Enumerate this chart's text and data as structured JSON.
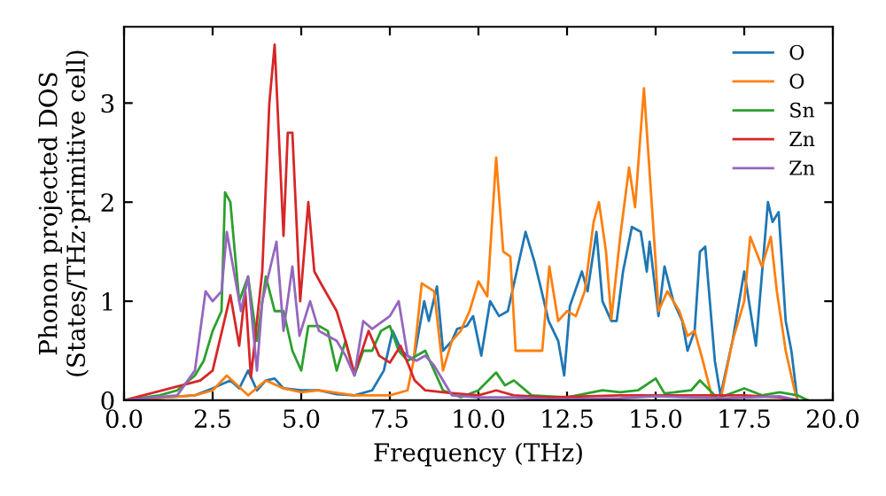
{
  "chart_data": {
    "type": "line",
    "xlabel": "Frequency (THz)",
    "ylabel": "Phonon projected DOS\n(States/THz·primitive cell)",
    "xlim": [
      0,
      20
    ],
    "ylim": [
      0,
      3.77
    ],
    "xticks": [
      {
        "value": 0,
        "label": "0.0"
      },
      {
        "value": 2.5,
        "label": "2.5"
      },
      {
        "value": 5,
        "label": "5.0"
      },
      {
        "value": 7.5,
        "label": "7.5"
      },
      {
        "value": 10,
        "label": "10.0"
      },
      {
        "value": 12.5,
        "label": "12.5"
      },
      {
        "value": 15,
        "label": "15.0"
      },
      {
        "value": 17.5,
        "label": "17.5"
      },
      {
        "value": 20,
        "label": "20.0"
      }
    ],
    "yticks": [
      0,
      1,
      2,
      3
    ],
    "grid": false,
    "legend": "top right",
    "marker": "none",
    "line_style": "solid",
    "series": [
      {
        "name": "O",
        "color": "#1f77b4",
        "x": [
          0,
          2,
          2.5,
          3.0,
          3.25,
          3.5,
          3.75,
          4,
          4.25,
          4.5,
          5.0,
          5.5,
          6.0,
          6.5,
          7.0,
          7.33,
          7.58,
          7.83,
          8.17,
          8.47,
          8.6,
          8.83,
          9.0,
          9.25,
          9.4,
          9.67,
          9.85,
          10.08,
          10.33,
          10.58,
          10.83,
          11.08,
          11.33,
          11.58,
          11.75,
          11.98,
          12.25,
          12.42,
          12.58,
          12.92,
          13.08,
          13.33,
          13.5,
          13.75,
          13.9,
          14.08,
          14.33,
          14.58,
          14.75,
          14.83,
          15.08,
          15.25,
          15.5,
          15.75,
          15.9,
          16.1,
          16.25,
          16.4,
          16.67,
          16.83,
          17.17,
          17.5,
          17.83,
          18.17,
          18.3,
          18.47,
          18.67,
          18.83,
          19.0
        ],
        "values": [
          0,
          0.05,
          0.12,
          0.2,
          0.12,
          0.3,
          0.1,
          0.2,
          0.22,
          0.12,
          0.1,
          0.1,
          0.06,
          0.05,
          0.1,
          0.3,
          0.7,
          0.5,
          0.4,
          1.0,
          0.8,
          1.15,
          0.5,
          0.6,
          0.72,
          0.75,
          0.85,
          0.45,
          1.0,
          0.85,
          0.9,
          1.3,
          1.7,
          1.4,
          1.15,
          0.8,
          0.6,
          0.25,
          0.95,
          1.3,
          1.1,
          1.7,
          1.0,
          0.8,
          0.8,
          1.3,
          1.75,
          1.7,
          1.3,
          1.6,
          0.85,
          1.35,
          1.0,
          0.8,
          0.5,
          0.7,
          1.5,
          1.55,
          0.4,
          0.05,
          0.6,
          1.3,
          0.55,
          2.0,
          1.8,
          1.9,
          0.8,
          0.5,
          0
        ]
      },
      {
        "name": "O",
        "color": "#ff7f0e",
        "x": [
          0,
          2,
          2.5,
          2.9,
          3.5,
          4,
          4.5,
          5.0,
          5.5,
          6.5,
          7.5,
          8.0,
          8.17,
          8.4,
          8.75,
          9.0,
          9.25,
          9.5,
          9.75,
          10,
          10.25,
          10.5,
          10.7,
          10.9,
          11.05,
          11.5,
          11.8,
          12.0,
          12.25,
          12.5,
          12.75,
          13.0,
          13.25,
          13.4,
          13.6,
          13.75,
          14.0,
          14.25,
          14.42,
          14.67,
          14.83,
          15.0,
          15.08,
          15.33,
          15.67,
          15.9,
          16.1,
          16.33,
          16.58,
          16.83,
          17.17,
          17.5,
          17.67,
          18.0,
          18.25,
          18.42,
          18.67,
          18.92,
          19.0
        ],
        "values": [
          0,
          0.05,
          0.1,
          0.25,
          0.05,
          0.2,
          0.12,
          0.08,
          0.1,
          0.05,
          0.05,
          0.1,
          0.4,
          1.18,
          1.1,
          0.3,
          0.6,
          0.7,
          0.9,
          1.2,
          1.05,
          2.45,
          1.5,
          1.45,
          0.5,
          0.5,
          0.5,
          1.35,
          0.8,
          0.9,
          0.85,
          1.1,
          1.8,
          2.0,
          1.5,
          0.82,
          1.65,
          2.35,
          1.95,
          3.15,
          2.3,
          1.4,
          0.9,
          1.1,
          0.9,
          0.65,
          0.7,
          0.4,
          0.05,
          0.0,
          0.6,
          1.0,
          1.65,
          1.35,
          1.65,
          1.1,
          0.5,
          0.1,
          0
        ]
      },
      {
        "name": "Sn",
        "color": "#2ca02c",
        "x": [
          0,
          1.0,
          1.5,
          2.0,
          2.25,
          2.5,
          2.75,
          2.85,
          3.0,
          3.25,
          3.5,
          3.75,
          4.0,
          4.25,
          4.5,
          4.75,
          5.0,
          5.2,
          5.5,
          5.75,
          6.0,
          6.25,
          6.5,
          6.75,
          7.0,
          7.25,
          7.5,
          7.75,
          8.0,
          8.5,
          8.75,
          9,
          9.5,
          10,
          10.5,
          10.75,
          11,
          11.5,
          12.5,
          13.5,
          14,
          14.5,
          15,
          15.25,
          16,
          16.25,
          16.75,
          17.5,
          18,
          18.5,
          19.0,
          19.3
        ],
        "values": [
          0,
          0.05,
          0.1,
          0.25,
          0.4,
          0.7,
          0.9,
          2.1,
          2.0,
          1.0,
          1.25,
          0.6,
          1.25,
          0.9,
          0.9,
          0.5,
          0.3,
          0.75,
          0.75,
          0.7,
          0.3,
          0.6,
          0.25,
          0.5,
          0.5,
          0.7,
          0.75,
          0.5,
          0.4,
          0.5,
          0.3,
          0.1,
          0.03,
          0.1,
          0.28,
          0.15,
          0.2,
          0.05,
          0.03,
          0.1,
          0.08,
          0.1,
          0.22,
          0.07,
          0.1,
          0.2,
          0.02,
          0.12,
          0.05,
          0.08,
          0.05,
          0
        ]
      },
      {
        "name": "Zn",
        "color": "#d62728",
        "x": [
          0,
          2.15,
          2.5,
          3.0,
          3.25,
          3.42,
          3.58,
          3.9,
          4.1,
          4.25,
          4.5,
          4.62,
          4.75,
          4.97,
          5.2,
          5.37,
          5.6,
          6.0,
          6.25,
          6.5,
          6.9,
          7.2,
          7.5,
          7.8,
          8.0,
          8.2,
          8.5,
          9,
          10,
          10.5,
          11,
          12,
          14,
          15,
          17.5,
          18.5,
          19.0
        ],
        "values": [
          0,
          0.2,
          0.3,
          1.06,
          0.55,
          1.1,
          0.23,
          1.3,
          3.0,
          3.59,
          1.66,
          2.7,
          2.7,
          1.0,
          2.0,
          1.3,
          1.15,
          0.9,
          0.6,
          0.27,
          0.7,
          0.45,
          0.38,
          0.55,
          0.38,
          0.2,
          0.1,
          0.08,
          0.05,
          0.1,
          0.05,
          0.03,
          0.05,
          0.05,
          0.05,
          0.03,
          0
        ]
      },
      {
        "name": "Zn",
        "color": "#9467bd",
        "x": [
          0,
          1.5,
          2.0,
          2.3,
          2.5,
          2.75,
          2.9,
          3.1,
          3.3,
          3.5,
          3.75,
          3.9,
          4.1,
          4.3,
          4.5,
          4.75,
          4.95,
          5.25,
          5.5,
          5.75,
          6.0,
          6.25,
          6.5,
          6.75,
          7.0,
          7.5,
          7.75,
          8.0,
          8.25,
          8.5,
          8.75,
          9.0,
          9.25,
          10,
          11,
          12,
          14,
          15,
          17,
          18.5,
          19
        ],
        "values": [
          0,
          0.05,
          0.3,
          1.1,
          1.0,
          1.1,
          1.7,
          1.3,
          0.9,
          1.25,
          0.3,
          1.0,
          1.3,
          1.6,
          0.7,
          1.35,
          0.65,
          1.0,
          0.7,
          0.65,
          0.6,
          0.45,
          0.25,
          0.8,
          0.72,
          0.85,
          1.0,
          0.45,
          0.4,
          0.45,
          0.35,
          0.2,
          0.05,
          0.03,
          0.03,
          0.01,
          0.02,
          0.04,
          0.02,
          0.04,
          0
        ]
      }
    ]
  }
}
